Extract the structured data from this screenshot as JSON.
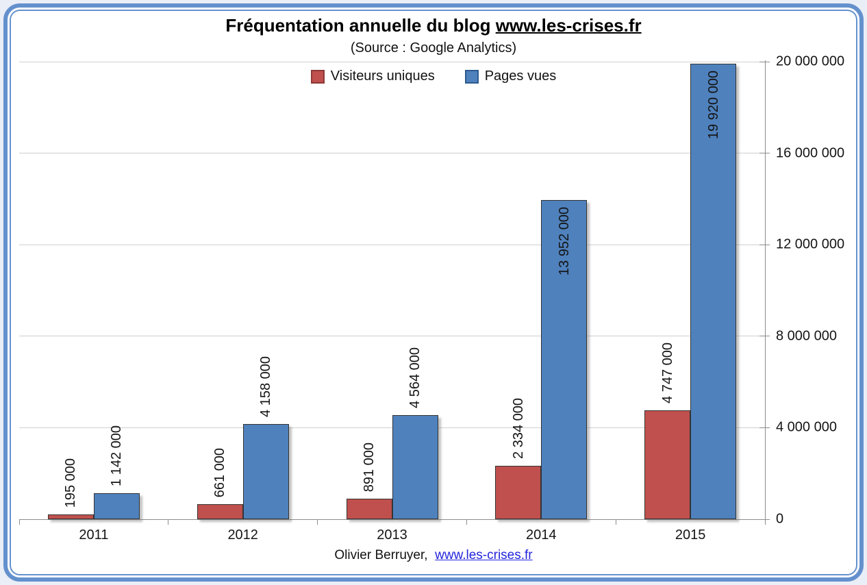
{
  "frame": {
    "border_color": "#6491cd",
    "background": "#ffffff",
    "page_background": "#e9eef7"
  },
  "header": {
    "title_prefix": "Fréquentation annuelle du blog ",
    "title_link": "www.les-crises.fr",
    "subtitle": "(Source : Google Analytics)"
  },
  "legend": {
    "items": [
      {
        "label": "Visiteurs uniques",
        "color": "#c0504d",
        "border": "#8c3836"
      },
      {
        "label": "Pages vues",
        "color": "#4f81bd",
        "border": "#2e5a8f"
      }
    ]
  },
  "footer": {
    "author": "Olivier Berruyer,",
    "link": "www.les-crises.fr"
  },
  "chart_data": {
    "type": "bar",
    "title": "Fréquentation annuelle du blog www.les-crises.fr",
    "subtitle": "(Source : Google Analytics)",
    "categories": [
      "2011",
      "2012",
      "2013",
      "2014",
      "2015"
    ],
    "series": [
      {
        "name": "Visiteurs uniques",
        "color": "#c0504d",
        "values": [
          195000,
          661000,
          891000,
          2334000,
          4747000
        ],
        "labels": [
          "195 000",
          "661 000",
          "891 000",
          "2 334 000",
          "4 747 000"
        ],
        "label_placement": "outside"
      },
      {
        "name": "Pages vues",
        "color": "#4f81bd",
        "values": [
          1142000,
          4158000,
          4564000,
          13952000,
          19920000
        ],
        "labels": [
          "1 142 000",
          "4 158 000",
          "4 564 000",
          "13 952 000",
          "19 920 000"
        ],
        "label_placement": "inside-end-when-fits"
      }
    ],
    "xlabel": "",
    "ylabel": "",
    "ylim": [
      0,
      20000000
    ],
    "ytick_step": 4000000,
    "ytick_labels": [
      "0",
      "4 000 000",
      "8 000 000",
      "12 000 000",
      "16 000 000",
      "20 000 000"
    ],
    "yaxis_side": "right",
    "grid": true,
    "legend_position": "top-center"
  }
}
